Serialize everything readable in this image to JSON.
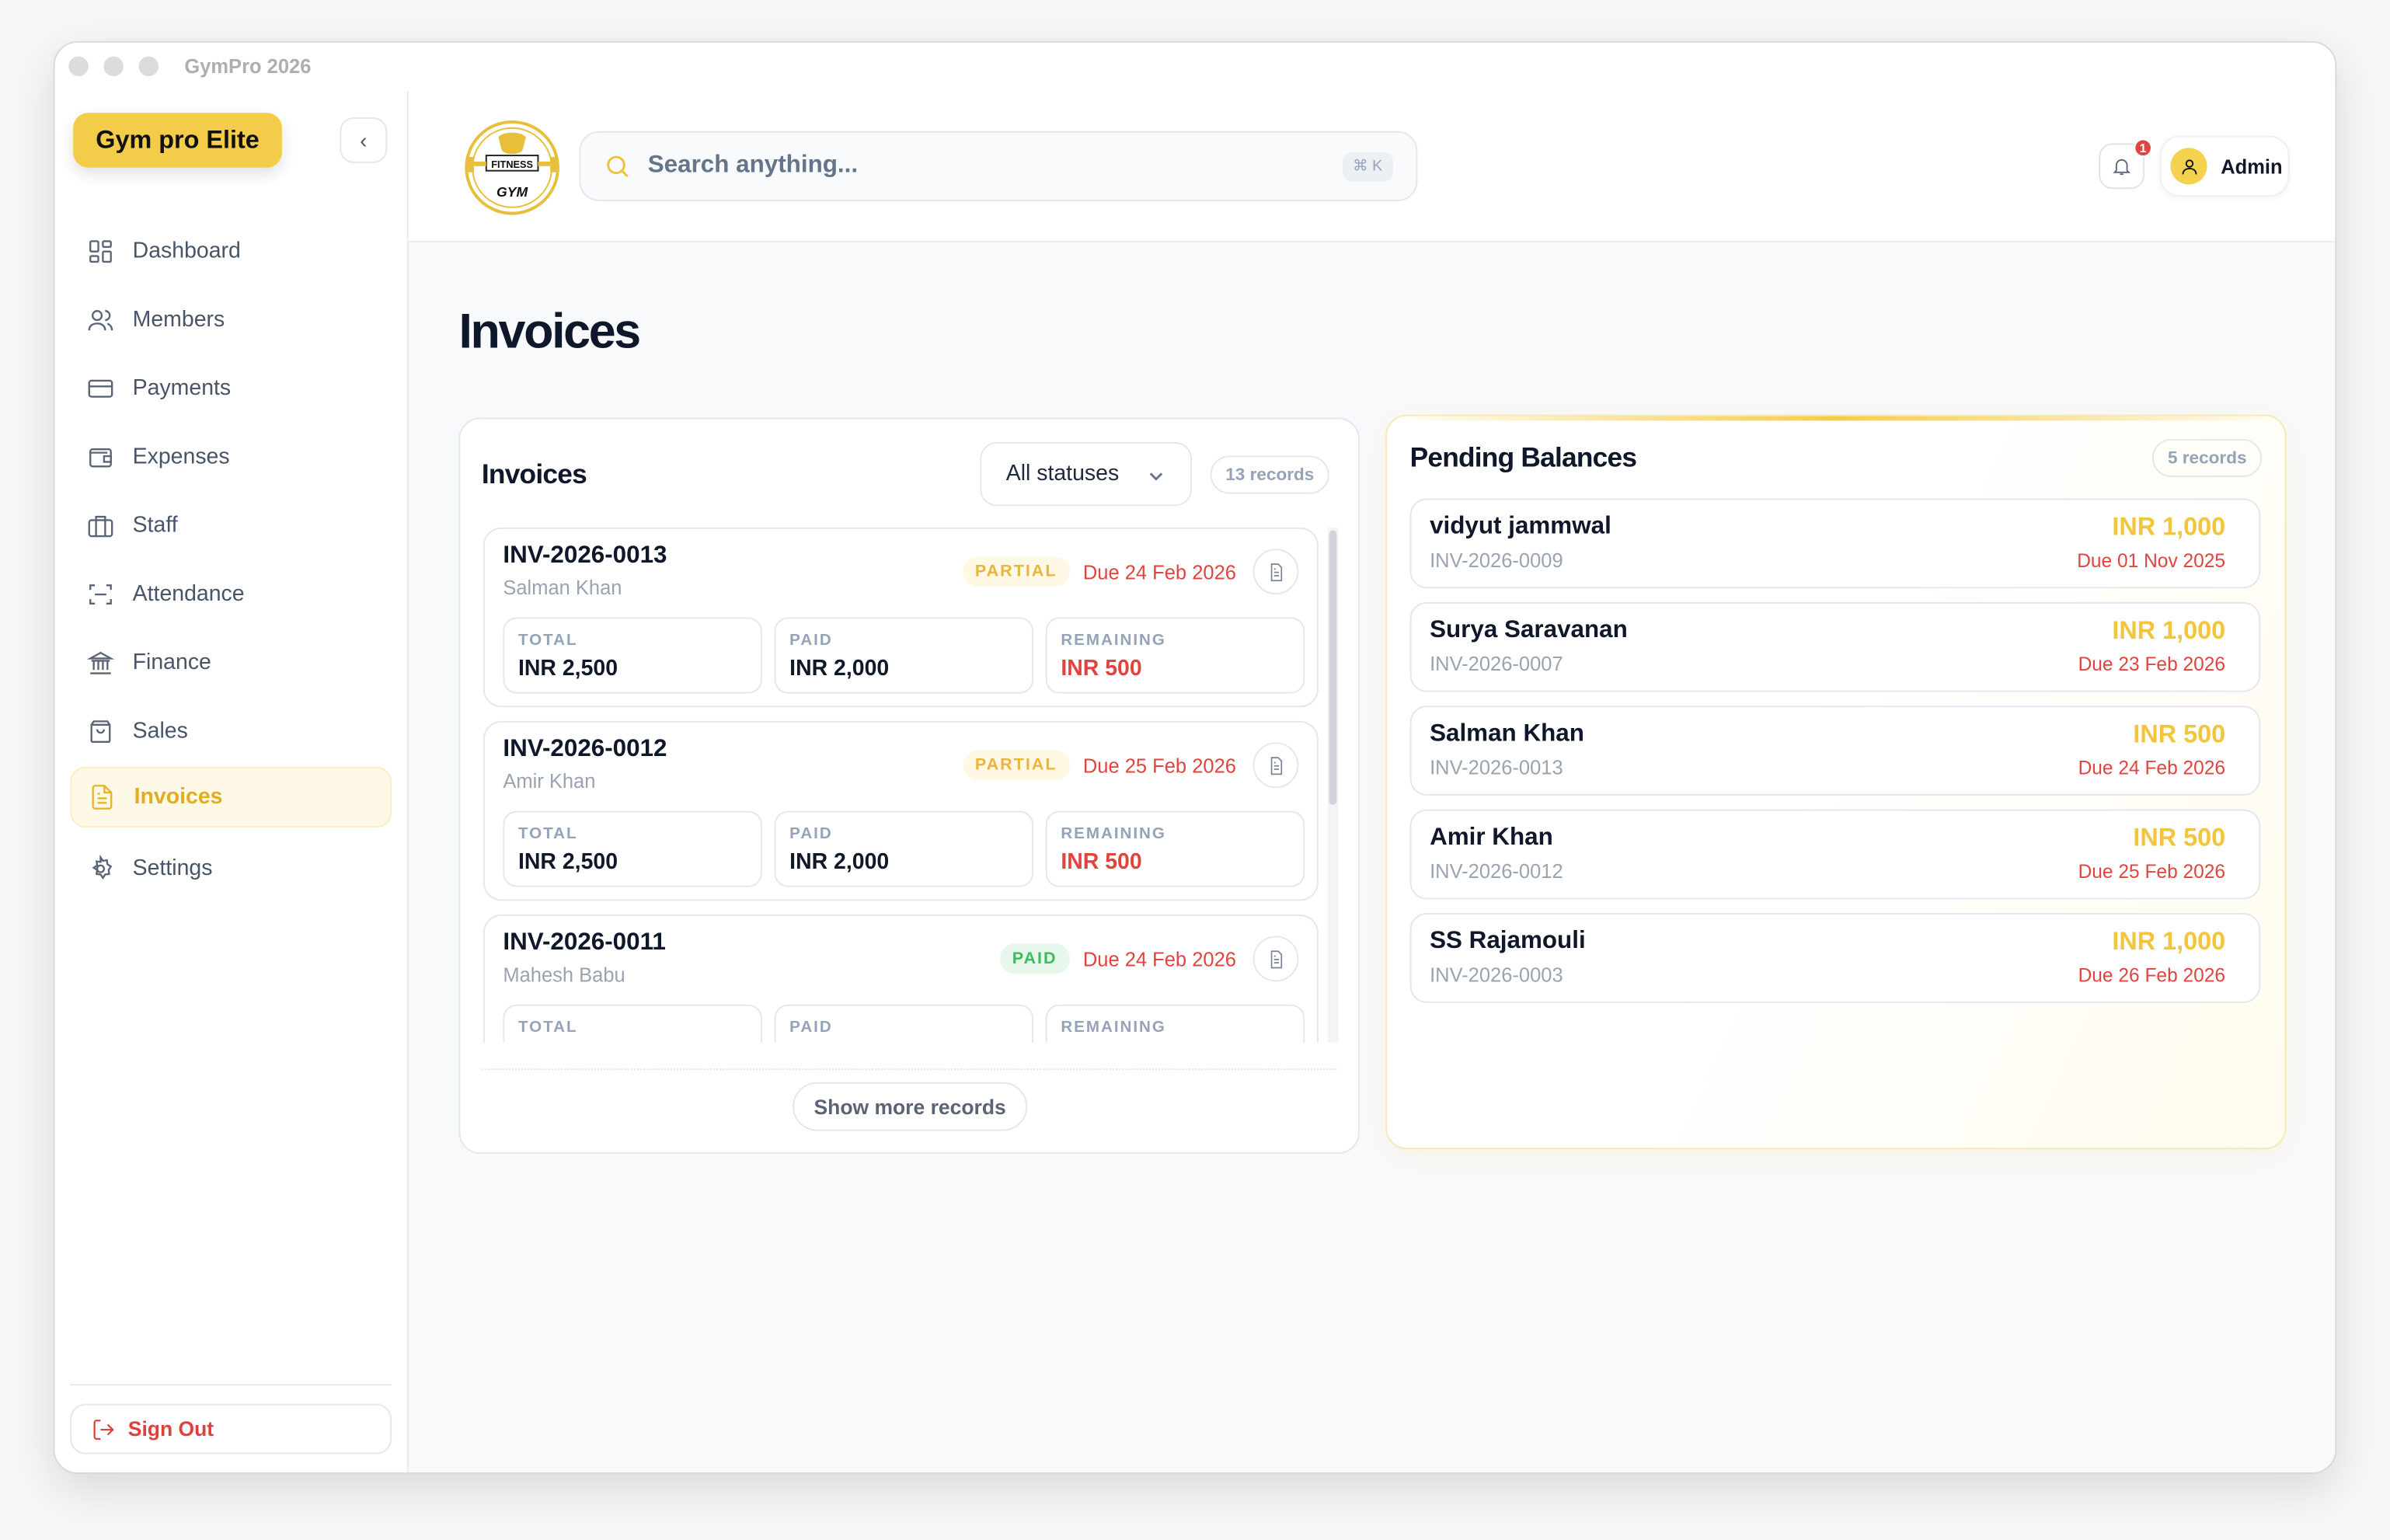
{
  "window": {
    "title": "GymPro 2026"
  },
  "sidebar": {
    "brand": "Gym pro Elite",
    "items": [
      {
        "label": "Dashboard",
        "icon": "dashboard-icon"
      },
      {
        "label": "Members",
        "icon": "users-icon"
      },
      {
        "label": "Payments",
        "icon": "credit-card-icon"
      },
      {
        "label": "Expenses",
        "icon": "wallet-icon"
      },
      {
        "label": "Staff",
        "icon": "briefcase-icon"
      },
      {
        "label": "Attendance",
        "icon": "scan-icon"
      },
      {
        "label": "Finance",
        "icon": "bank-icon"
      },
      {
        "label": "Sales",
        "icon": "shopping-bag-icon"
      },
      {
        "label": "Invoices",
        "icon": "file-text-icon",
        "active": true
      },
      {
        "label": "Settings",
        "icon": "gear-icon"
      }
    ],
    "sign_out": "Sign Out"
  },
  "header": {
    "logo_text": "FITNESS GYM",
    "search_placeholder": "Search anything...",
    "shortcut": "⌘ K",
    "notifications_count": "1",
    "user": "Admin"
  },
  "page": {
    "title": "Invoices"
  },
  "invoices": {
    "title": "Invoices",
    "filter": "All statuses",
    "count": "13 records",
    "labels": {
      "total": "TOTAL",
      "paid": "PAID",
      "remaining": "REMAINING"
    },
    "items": [
      {
        "id": "INV-2026-0013",
        "member": "Salman Khan",
        "status": "PARTIAL",
        "due": "Due 24 Feb 2026",
        "total": "INR 2,500",
        "paid": "INR 2,000",
        "remaining": "INR 500"
      },
      {
        "id": "INV-2026-0012",
        "member": "Amir Khan",
        "status": "PARTIAL",
        "due": "Due 25 Feb 2026",
        "total": "INR 2,500",
        "paid": "INR 2,000",
        "remaining": "INR 500"
      },
      {
        "id": "INV-2026-0011",
        "member": "Mahesh Babu",
        "status": "PAID",
        "due": "Due 24 Feb 2026"
      }
    ],
    "show_more": "Show more records"
  },
  "pending": {
    "title": "Pending Balances",
    "count": "5 records",
    "items": [
      {
        "name": "vidyut jammwal",
        "invoice": "INV-2026-0009",
        "amount": "INR 1,000",
        "due": "Due 01 Nov 2025"
      },
      {
        "name": "Surya Saravanan",
        "invoice": "INV-2026-0007",
        "amount": "INR 1,000",
        "due": "Due 23 Feb 2026"
      },
      {
        "name": "Salman Khan",
        "invoice": "INV-2026-0013",
        "amount": "INR 500",
        "due": "Due 24 Feb 2026"
      },
      {
        "name": "Amir Khan",
        "invoice": "INV-2026-0012",
        "amount": "INR 500",
        "due": "Due 25 Feb 2026"
      },
      {
        "name": "SS Rajamouli",
        "invoice": "INV-2026-0003",
        "amount": "INR 1,000",
        "due": "Due 26 Feb 2026"
      }
    ]
  },
  "colors": {
    "accent": "#f3cd4a",
    "danger": "#e0443e",
    "success": "#3fba5d"
  }
}
